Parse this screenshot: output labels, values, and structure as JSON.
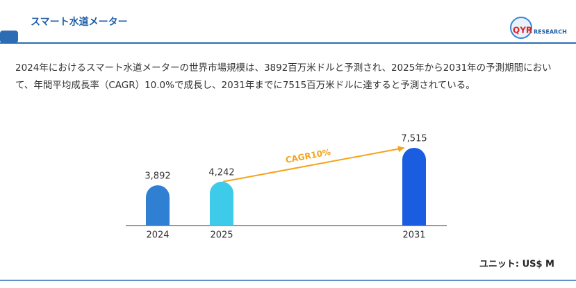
{
  "header": {
    "title": "スマート水道メーター",
    "logo_mark": "QYR",
    "logo_text": "RESEARCH"
  },
  "description": "2024年におけるスマート水道メーターの世界市場規模は、3892百万米ドルと予測され、2025年から2031年の予測期間において、年間平均成長率（CAGR）10.0%で成長し、2031年までに7515百万米ドルに達すると予測されている。",
  "chart_data": {
    "type": "bar",
    "categories": [
      "2024",
      "2025",
      "2031"
    ],
    "values": [
      3892,
      4242,
      7515
    ],
    "value_labels": [
      "3,892",
      "4,242",
      "7,515"
    ],
    "colors": [
      "#2f80d3",
      "#3ecbe9",
      "#1a5de0"
    ],
    "ylim": [
      0,
      7515
    ],
    "annotation": "CAGR10%",
    "annotation_color": "#f5a31a"
  },
  "unit": "ユニット: US$ M"
}
